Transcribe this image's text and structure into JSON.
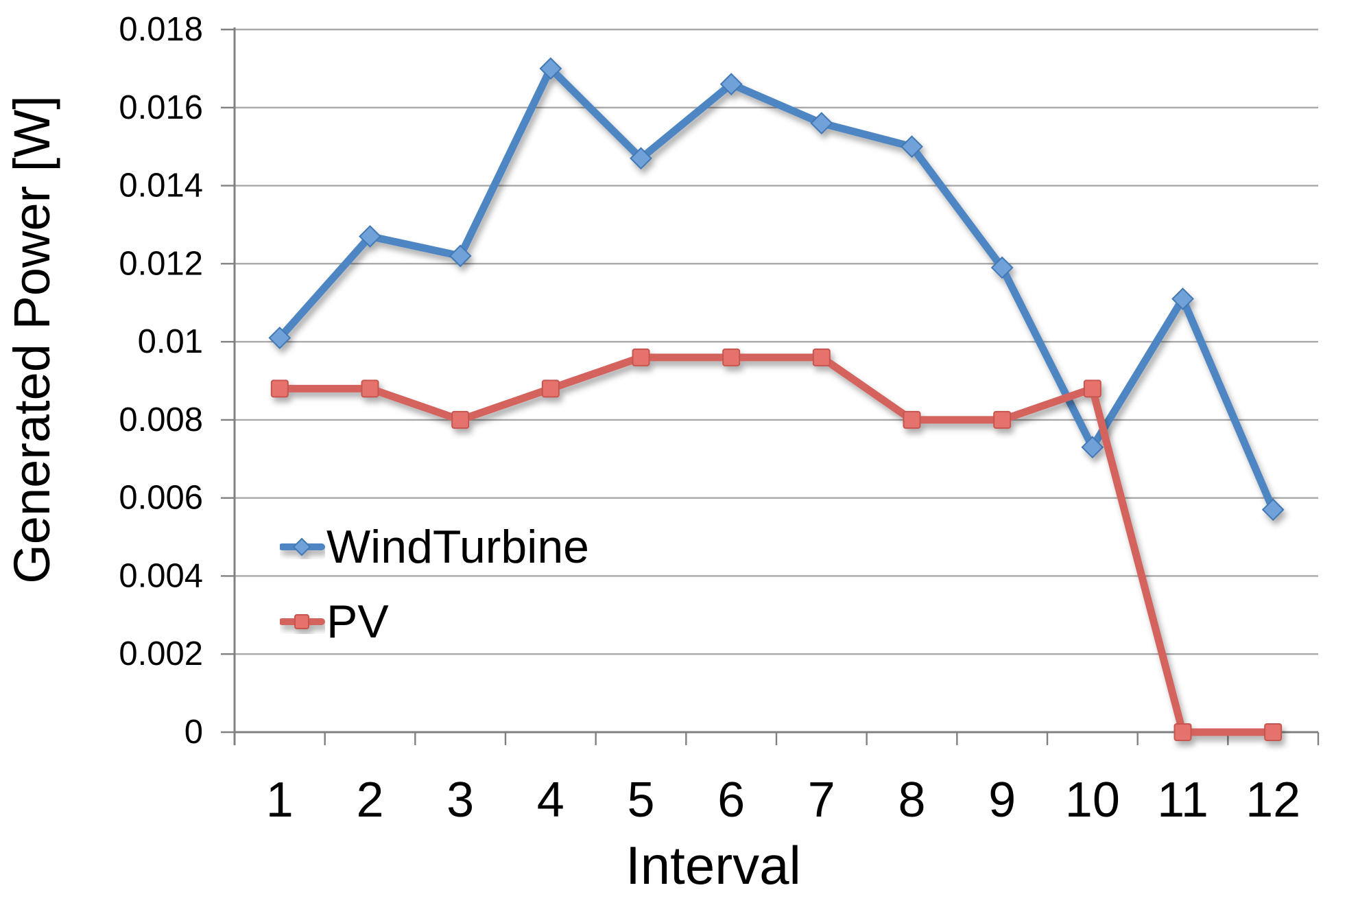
{
  "chart_data": {
    "type": "line",
    "title": "",
    "xlabel": "Interval",
    "ylabel": "Generated Power [W]",
    "categories": [
      "1",
      "2",
      "3",
      "4",
      "5",
      "6",
      "7",
      "8",
      "9",
      "10",
      "11",
      "12"
    ],
    "series": [
      {
        "name": "WindTurbine",
        "marker": "diamond",
        "line_color": "#4E86C2",
        "marker_fill": "#6FA1D9",
        "marker_stroke": "#4379B4",
        "values": [
          0.0101,
          0.0127,
          0.0122,
          0.017,
          0.0147,
          0.0166,
          0.0156,
          0.015,
          0.0119,
          0.0073,
          0.0111,
          0.0057
        ]
      },
      {
        "name": "PV",
        "marker": "square",
        "line_color": "#D4625D",
        "marker_fill": "#E5736C",
        "marker_stroke": "#C65550",
        "values": [
          0.0088,
          0.0088,
          0.008,
          0.0088,
          0.0096,
          0.0096,
          0.0096,
          0.008,
          0.008,
          0.0088,
          0.0,
          0.0
        ]
      }
    ],
    "ylim": [
      0,
      0.018
    ],
    "ytick_step": 0.002,
    "ytick_labels": [
      "0",
      "0.002",
      "0.004",
      "0.006",
      "0.008",
      "0.01",
      "0.012",
      "0.014",
      "0.016",
      "0.018"
    ],
    "grid": "horizontal",
    "legend_position": "inside-left",
    "colors": {
      "axis": "#808080",
      "gridline": "#A8A8A8",
      "text": "#000000"
    }
  }
}
